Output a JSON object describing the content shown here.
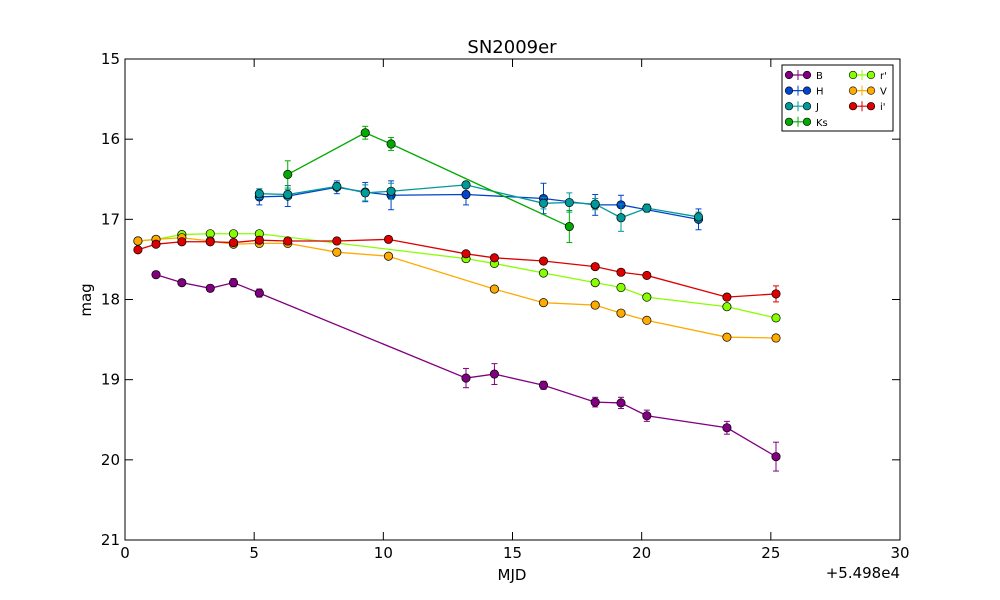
{
  "chart_data": {
    "type": "scatter",
    "title": "SN2009er",
    "xlabel": "MJD",
    "ylabel": "mag",
    "x_offset_label": "+5.498e4",
    "xlim": [
      0,
      30
    ],
    "ylim": [
      21,
      15
    ],
    "y_inverted": true,
    "x_ticks": [
      "0",
      "5",
      "10",
      "15",
      "20",
      "25",
      "30"
    ],
    "y_ticks": [
      "15",
      "16",
      "17",
      "18",
      "19",
      "20",
      "21"
    ],
    "legend_position": "top-right",
    "grid": false,
    "series": [
      {
        "name": "B",
        "color": "#800080",
        "x": [
          1.2,
          2.2,
          3.3,
          4.2,
          5.2,
          13.2,
          14.3,
          16.2,
          18.2,
          19.2,
          20.2,
          23.3,
          25.2
        ],
        "y": [
          17.69,
          17.79,
          17.86,
          17.79,
          17.92,
          18.98,
          18.93,
          19.07,
          19.28,
          19.29,
          19.45,
          19.6,
          19.96
        ],
        "err": [
          0.04,
          0.04,
          0.04,
          0.05,
          0.05,
          0.12,
          0.13,
          0.05,
          0.06,
          0.07,
          0.07,
          0.08,
          0.18
        ]
      },
      {
        "name": "H",
        "color": "#0044cc",
        "x": [
          5.2,
          6.3,
          8.2,
          9.3,
          10.3,
          13.2,
          16.2,
          18.2,
          19.2,
          22.2
        ],
        "y": [
          16.72,
          16.71,
          16.6,
          16.66,
          16.7,
          16.69,
          16.74,
          16.82,
          16.82,
          17.0
        ],
        "err": [
          0.1,
          0.13,
          0.08,
          0.12,
          0.18,
          0.13,
          0.19,
          0.13,
          0.12,
          0.13
        ]
      },
      {
        "name": "J",
        "color": "#009999",
        "x": [
          5.2,
          6.3,
          8.2,
          9.3,
          10.3,
          13.2,
          16.2,
          17.2,
          18.2,
          19.2,
          20.2,
          22.2
        ],
        "y": [
          16.68,
          16.69,
          16.59,
          16.67,
          16.65,
          16.57,
          16.8,
          16.79,
          16.81,
          16.98,
          16.86,
          16.97
        ],
        "err": [
          0.06,
          0.06,
          0.05,
          0.1,
          0.1,
          0.04,
          0.07,
          0.12,
          0.07,
          0.17,
          0.05,
          0.06
        ]
      },
      {
        "name": "Ks",
        "color": "#00aa00",
        "x": [
          6.3,
          9.3,
          10.3,
          17.2
        ],
        "y": [
          16.44,
          15.92,
          16.06,
          17.09
        ],
        "err": [
          0.17,
          0.08,
          0.08,
          0.2
        ]
      },
      {
        "name": "r'",
        "color": "#88ff00",
        "x": [
          0.5,
          1.2,
          2.2,
          3.3,
          4.2,
          5.2,
          13.2,
          14.3,
          16.2,
          18.2,
          19.2,
          20.2,
          23.3,
          25.2
        ],
        "y": [
          17.27,
          17.25,
          17.19,
          17.18,
          17.18,
          17.18,
          17.49,
          17.55,
          17.67,
          17.79,
          17.85,
          17.97,
          18.09,
          18.23
        ],
        "err": [
          0.02,
          0.02,
          0.02,
          0.02,
          0.02,
          0.02,
          0.02,
          0.02,
          0.02,
          0.02,
          0.02,
          0.02,
          0.02,
          0.03
        ]
      },
      {
        "name": "V",
        "color": "#ffaa00",
        "x": [
          0.5,
          1.2,
          2.2,
          3.3,
          4.2,
          5.2,
          6.3,
          8.2,
          10.2,
          14.3,
          16.2,
          18.2,
          19.2,
          20.2,
          23.3,
          25.2
        ],
        "y": [
          17.27,
          17.25,
          17.23,
          17.27,
          17.31,
          17.3,
          17.3,
          17.41,
          17.46,
          17.87,
          18.04,
          18.07,
          18.17,
          18.26,
          18.47,
          18.48
        ],
        "err": [
          0.02,
          0.02,
          0.02,
          0.02,
          0.02,
          0.02,
          0.02,
          0.02,
          0.02,
          0.02,
          0.02,
          0.02,
          0.02,
          0.02,
          0.02,
          0.04
        ]
      },
      {
        "name": "i'",
        "color": "#dd0000",
        "x": [
          0.5,
          1.2,
          2.2,
          3.3,
          4.2,
          5.2,
          6.3,
          8.2,
          10.2,
          13.2,
          14.3,
          16.2,
          18.2,
          19.2,
          20.2,
          23.3,
          25.2
        ],
        "y": [
          17.38,
          17.31,
          17.28,
          17.28,
          17.29,
          17.26,
          17.27,
          17.27,
          17.25,
          17.43,
          17.48,
          17.52,
          17.59,
          17.66,
          17.7,
          17.97,
          17.93
        ],
        "err": [
          0.02,
          0.02,
          0.02,
          0.02,
          0.02,
          0.02,
          0.02,
          0.02,
          0.02,
          0.02,
          0.02,
          0.02,
          0.02,
          0.02,
          0.02,
          0.04,
          0.1
        ]
      }
    ]
  }
}
